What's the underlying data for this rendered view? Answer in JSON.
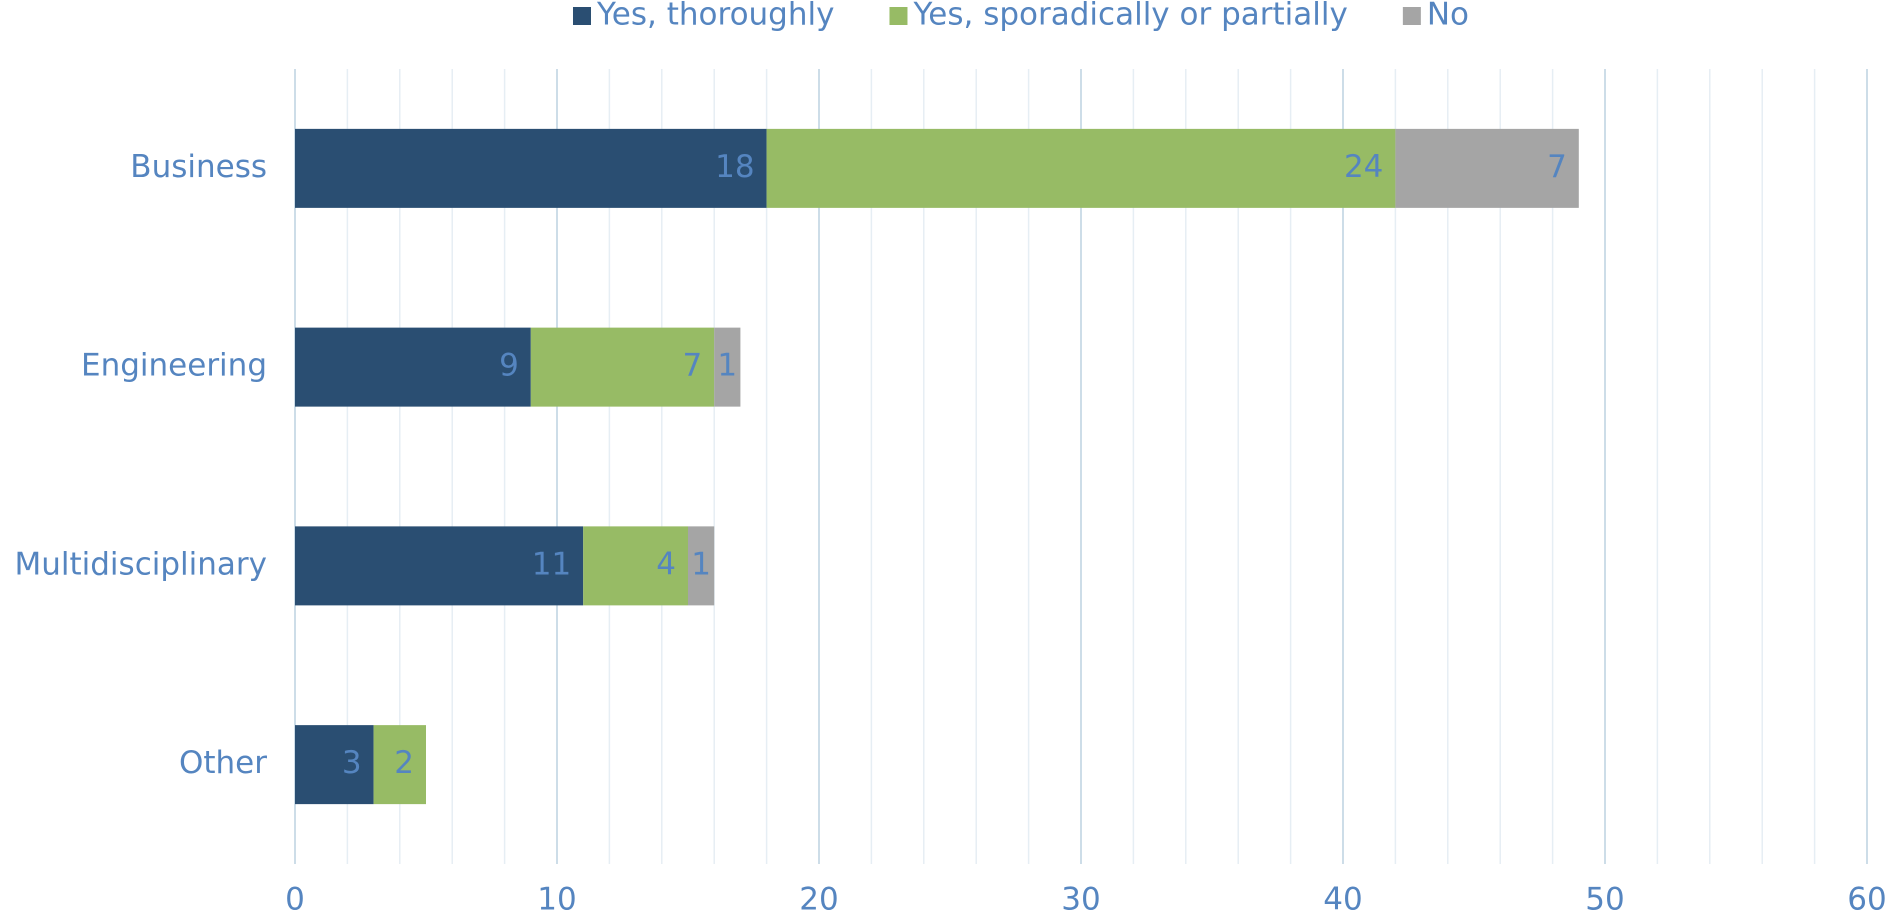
{
  "chart_data": {
    "type": "stacked_barh",
    "categories": [
      "Business",
      "Engineering",
      "Multidisciplinary",
      "Other"
    ],
    "series": [
      {
        "name": "Yes, thoroughly",
        "color": "#2a4e72",
        "values": [
          18,
          9,
          11,
          3
        ]
      },
      {
        "name": "Yes, sporadically or partially",
        "color": "#97bb65",
        "values": [
          24,
          7,
          4,
          2
        ]
      },
      {
        "name": "No",
        "color": "#a5a5a5",
        "values": [
          7,
          1,
          1,
          null
        ]
      }
    ],
    "xlim": [
      0,
      60
    ],
    "xticks": [
      0,
      10,
      20,
      30,
      40,
      50,
      60
    ],
    "grid": true,
    "legend": "top"
  }
}
